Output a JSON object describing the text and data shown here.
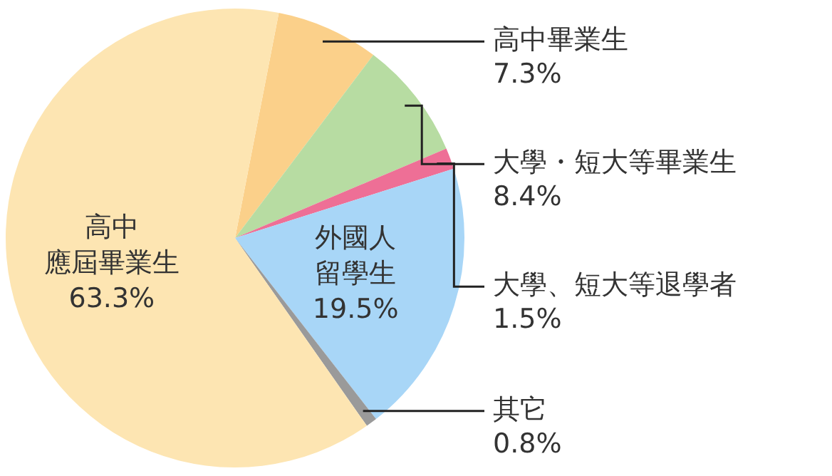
{
  "chart_data": {
    "type": "pie",
    "categories": [
      "高中畢業生",
      "大學・短大等畢業生",
      "大學、短大等退學者",
      "外國人留學生",
      "其它",
      "高中應屆畢業生"
    ],
    "values": [
      7.3,
      8.4,
      1.5,
      19.5,
      0.8,
      63.3
    ],
    "colors": [
      "#fbd08a",
      "#b7dca2",
      "#ee6f96",
      "#a8d6f7",
      "#9a9a9a",
      "#fde5b2"
    ],
    "value_labels": [
      "7.3%",
      "8.4%",
      "1.5%",
      "19.5%",
      "0.8%",
      "63.3%"
    ],
    "legend": false
  }
}
